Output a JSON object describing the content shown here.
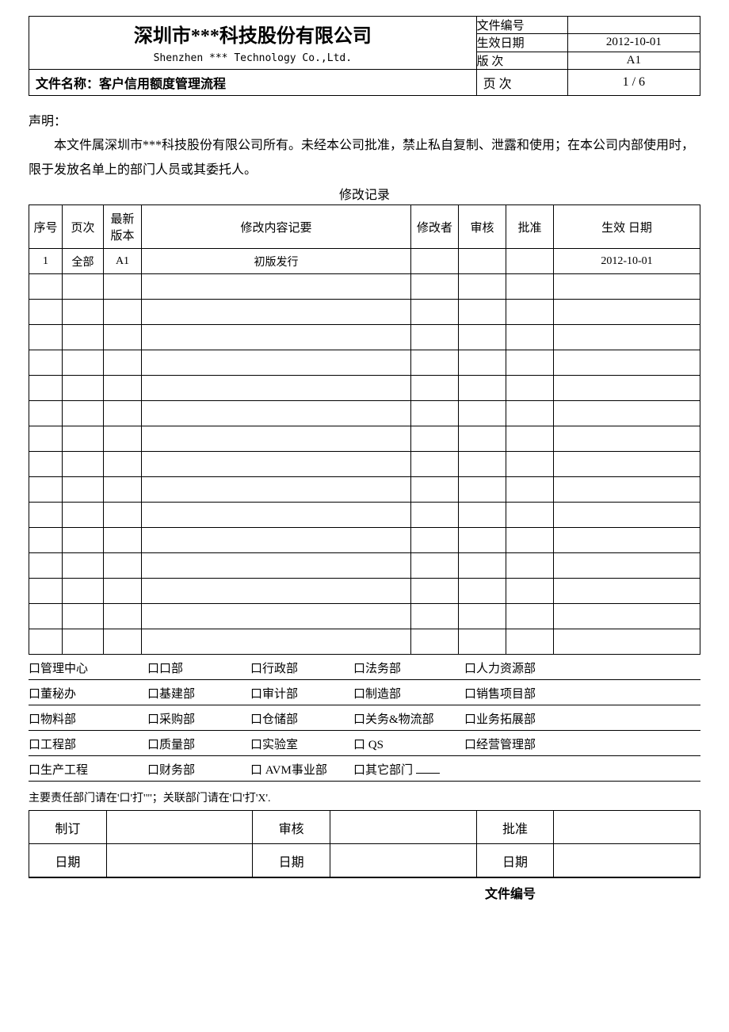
{
  "header": {
    "company_cn": "深圳市***科技股份有限公司",
    "company_en": "Shenzhen *** Technology Co.,Ltd.",
    "fields": {
      "doc_no_label": "文件编号",
      "doc_no_value": "",
      "eff_date_label": "生效日期",
      "eff_date_value": "2012-10-01",
      "version_label": "版 次",
      "version_value": "A1",
      "page_label": "页 次",
      "page_value": "1 / 6"
    },
    "doc_name_label": "文件名称：",
    "doc_name_value": "客户信用额度管理流程"
  },
  "declaration": {
    "title": "声明：",
    "body": "本文件属深圳市***科技股份有限公司所有。未经本公司批准，禁止私自复制、泄露和使用；在本公司内部使用时，限于发放名单上的部门人员或其委托人。"
  },
  "revision": {
    "title": "修改记录",
    "columns": {
      "seq": "序号",
      "page": "页次",
      "ver": "最新版本",
      "desc": "修改内容记要",
      "modifier": "修改者",
      "reviewer": "审核",
      "approver": "批准",
      "eff_date": "生效 日期"
    },
    "rows": [
      {
        "seq": "1",
        "page": "全部",
        "ver": "A1",
        "desc": "初版发行",
        "modifier": "",
        "reviewer": "",
        "approver": "",
        "eff_date": "2012-10-01"
      }
    ],
    "empty_rows": 15
  },
  "departments": {
    "checkbox_glyph": "口",
    "rows": [
      [
        "管理中心",
        "口部",
        "行政部",
        "法务部",
        "人力资源部"
      ],
      [
        "董秘办",
        "基建部",
        "审计部",
        "制造部",
        "销售项目部"
      ],
      [
        "物料部",
        "采购部",
        "仓储部",
        "关务&物流部",
        "业务拓展部"
      ],
      [
        "工程部",
        "质量部",
        "实验室",
        " QS",
        "经营管理部"
      ],
      [
        "生产工程",
        "财务部",
        " AVM事业部",
        "其它部门",
        ""
      ]
    ],
    "note": "主要责任部门请在'口'打'\"'；关联部门请在'口'打'X'."
  },
  "signoff": {
    "prepare_label": "制订",
    "review_label": "审核",
    "approve_label": "批准",
    "date_label": "日期"
  },
  "footer": {
    "doc_no_label": "文件编号"
  }
}
